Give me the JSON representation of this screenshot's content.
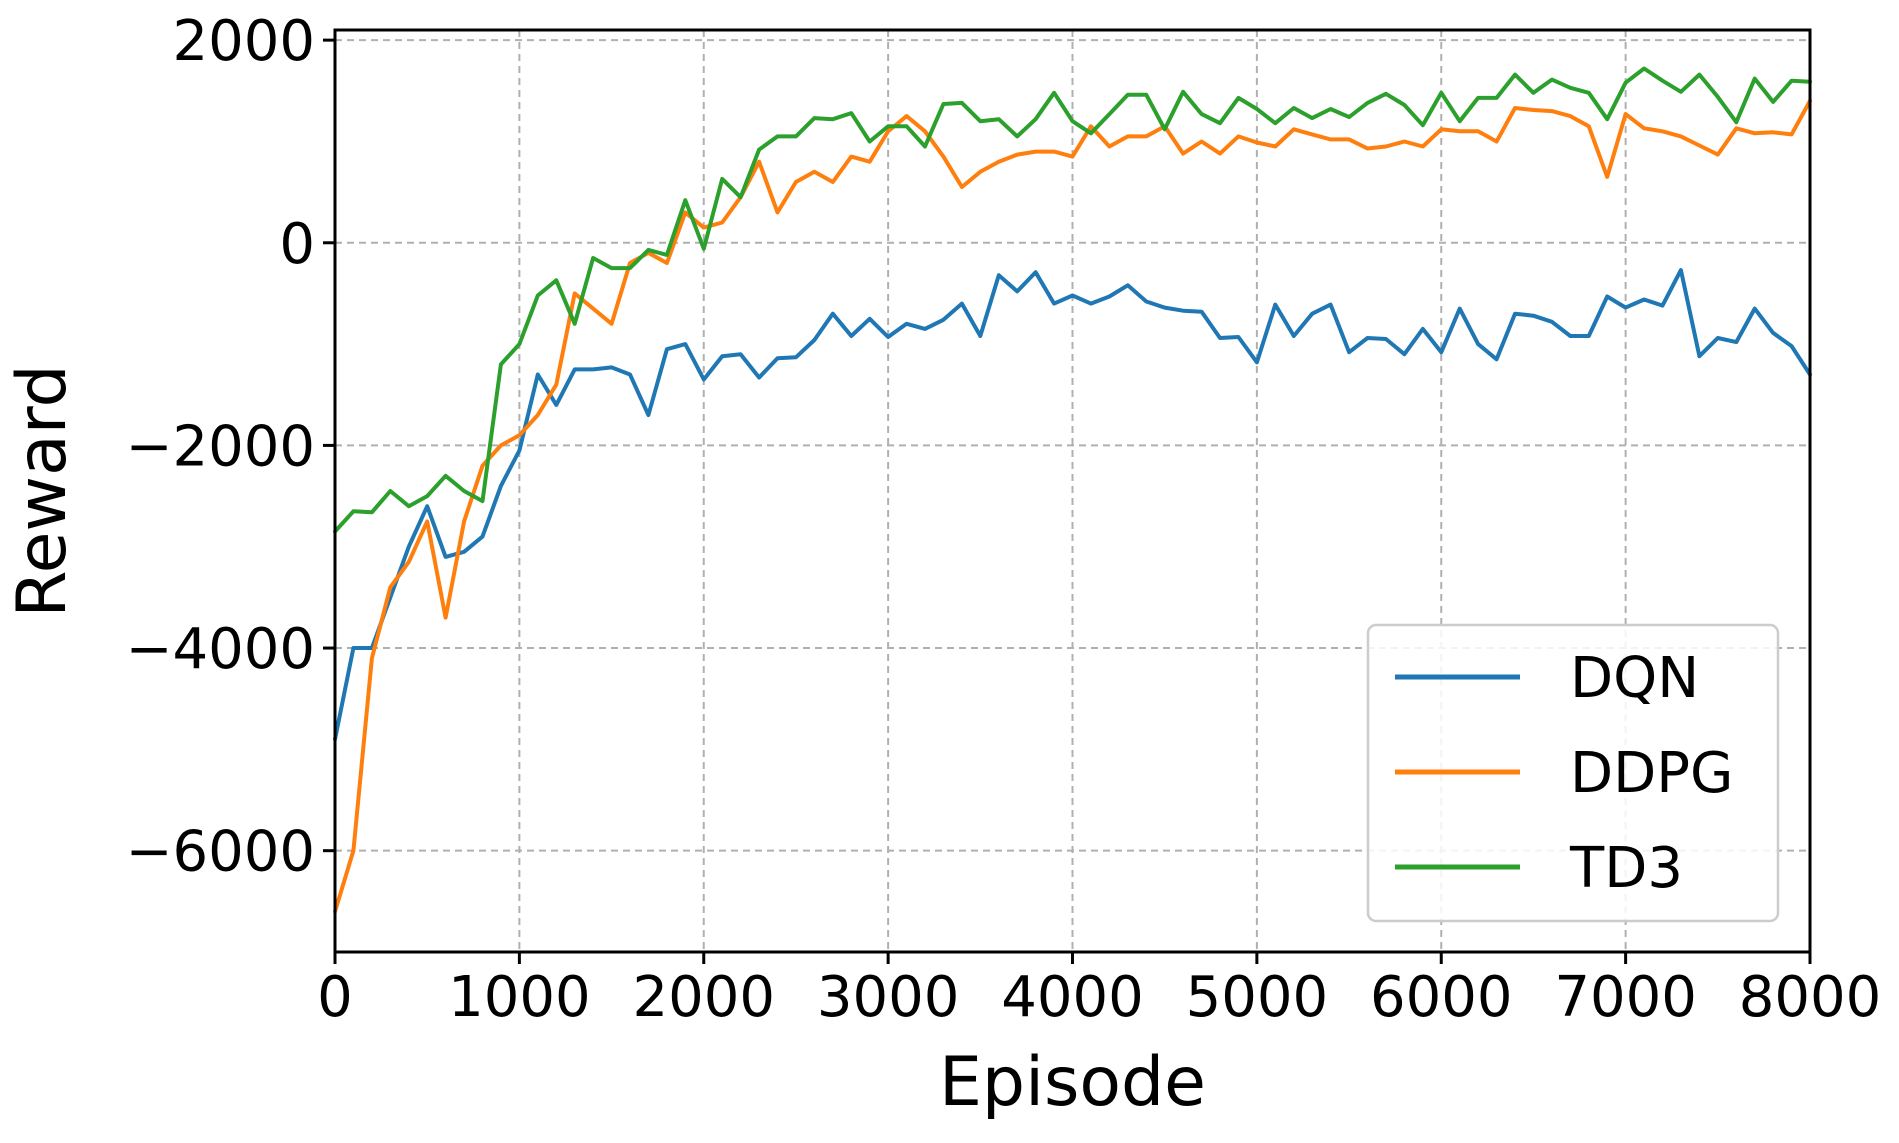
{
  "chart_data": {
    "type": "line",
    "title": "",
    "xlabel": "Episode",
    "ylabel": "Reward",
    "xlim": [
      0,
      8000
    ],
    "ylim": [
      -7000,
      2100
    ],
    "xticks": [
      0,
      1000,
      2000,
      3000,
      4000,
      5000,
      6000,
      7000,
      8000
    ],
    "xtick_labels": [
      "0",
      "1000",
      "2000",
      "3000",
      "4000",
      "5000",
      "6000",
      "7000",
      "8000"
    ],
    "yticks": [
      -6000,
      -4000,
      -2000,
      0,
      2000
    ],
    "ytick_labels": [
      "−6000",
      "−4000",
      "−2000",
      "0",
      "2000"
    ],
    "grid": true,
    "legend_position": "lower-right",
    "x": [
      0,
      100,
      200,
      300,
      400,
      500,
      600,
      700,
      800,
      900,
      1000,
      1100,
      1200,
      1300,
      1400,
      1500,
      1600,
      1700,
      1800,
      1900,
      2000,
      2100,
      2200,
      2300,
      2400,
      2500,
      2600,
      2700,
      2800,
      2900,
      3000,
      3100,
      3200,
      3300,
      3400,
      3500,
      3600,
      3700,
      3800,
      3900,
      4000,
      4100,
      4200,
      4300,
      4400,
      4500,
      4600,
      4700,
      4800,
      4900,
      5000,
      5100,
      5200,
      5300,
      5400,
      5500,
      5600,
      5700,
      5800,
      5900,
      6000,
      6100,
      6200,
      6300,
      6400,
      6500,
      6600,
      6700,
      6800,
      6900,
      7000,
      7100,
      7200,
      7300,
      7400,
      7500,
      7600,
      7700,
      7800,
      7900,
      8000
    ],
    "series": [
      {
        "name": "DQN",
        "color": "#1f77b4",
        "values": [
          -4900,
          -4000,
          -4000,
          -3500,
          -3000,
          -2600,
          -3100,
          -3050,
          -2900,
          -2400,
          -2050,
          -1300,
          -1600,
          -1250,
          -1250,
          -1230,
          -1300,
          -1700,
          -1050,
          -1000,
          -1350,
          -1120,
          -1100,
          -1330,
          -1140,
          -1130,
          -960,
          -700,
          -920,
          -750,
          -930,
          -800,
          -850,
          -760,
          -600,
          -920,
          -320,
          -480,
          -290,
          -600,
          -520,
          -600,
          -530,
          -420,
          -580,
          -640,
          -670,
          -680,
          -940,
          -930,
          -1180,
          -610,
          -920,
          -700,
          -610,
          -1080,
          -940,
          -950,
          -1100,
          -850,
          -1080,
          -650,
          -1000,
          -1150,
          -700,
          -720,
          -780,
          -920,
          -920,
          -530,
          -640,
          -560,
          -620,
          -270,
          -1120,
          -940,
          -980,
          -650,
          -890,
          -1020,
          -1300
        ]
      },
      {
        "name": "DDPG",
        "color": "#ff7f0e",
        "values": [
          -6600,
          -6000,
          -4100,
          -3400,
          -3150,
          -2750,
          -3700,
          -2750,
          -2200,
          -2000,
          -1900,
          -1700,
          -1400,
          -500,
          -650,
          -800,
          -200,
          -100,
          -200,
          300,
          150,
          200,
          450,
          800,
          300,
          600,
          700,
          600,
          850,
          800,
          1100,
          1250,
          1100,
          850,
          550,
          700,
          800,
          870,
          900,
          900,
          850,
          1150,
          950,
          1050,
          1050,
          1150,
          880,
          1000,
          880,
          1050,
          990,
          950,
          1120,
          1070,
          1020,
          1020,
          930,
          950,
          1000,
          950,
          1120,
          1100,
          1100,
          1000,
          1330,
          1310,
          1300,
          1250,
          1150,
          650,
          1270,
          1130,
          1100,
          1050,
          960,
          870,
          1130,
          1080,
          1090,
          1070,
          1400
        ]
      },
      {
        "name": "TD3",
        "color": "#2ca02c",
        "values": [
          -2850,
          -2650,
          -2660,
          -2450,
          -2600,
          -2500,
          -2300,
          -2450,
          -2550,
          -1200,
          -1000,
          -520,
          -370,
          -800,
          -150,
          -250,
          -250,
          -70,
          -120,
          420,
          -60,
          630,
          450,
          920,
          1050,
          1050,
          1230,
          1220,
          1280,
          1000,
          1150,
          1150,
          950,
          1370,
          1380,
          1200,
          1220,
          1050,
          1220,
          1480,
          1200,
          1080,
          1270,
          1460,
          1460,
          1120,
          1490,
          1270,
          1180,
          1430,
          1320,
          1180,
          1330,
          1230,
          1320,
          1240,
          1380,
          1470,
          1360,
          1160,
          1480,
          1200,
          1430,
          1430,
          1660,
          1480,
          1610,
          1530,
          1480,
          1220,
          1580,
          1720,
          1600,
          1490,
          1660,
          1440,
          1190,
          1620,
          1390,
          1600,
          1590
        ]
      }
    ]
  }
}
